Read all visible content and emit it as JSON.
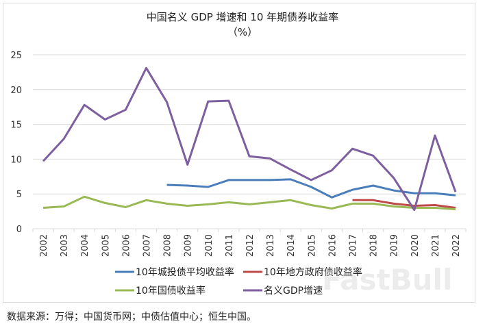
{
  "chart_data": {
    "type": "line",
    "title": "中国名义 GDP 增速和 10 年期债券收益率",
    "subtitle": "（%）",
    "ylim": [
      0,
      25
    ],
    "yticks": [
      0,
      5,
      10,
      15,
      20,
      25
    ],
    "grid": true,
    "legend_position": "bottom",
    "categories": [
      "2002",
      "2003",
      "2004",
      "2005",
      "2006",
      "2007",
      "2008",
      "2009",
      "2010",
      "2011",
      "2012",
      "2013",
      "2014",
      "2015",
      "2016",
      "2017",
      "2018",
      "2019",
      "2020",
      "2021",
      "2022"
    ],
    "series": [
      {
        "name": "10年城投债平均收益率",
        "color": "#4a7ebb",
        "values": [
          null,
          null,
          null,
          null,
          null,
          null,
          6.3,
          6.2,
          6.0,
          7.0,
          7.0,
          7.0,
          7.1,
          6.0,
          4.5,
          5.6,
          6.2,
          5.5,
          5.1,
          5.1,
          4.8
        ]
      },
      {
        "name": "10年地方政府债收益率",
        "color": "#be4b48",
        "values": [
          null,
          null,
          null,
          null,
          null,
          null,
          null,
          null,
          null,
          null,
          null,
          null,
          null,
          null,
          null,
          4.1,
          4.1,
          3.6,
          3.3,
          3.4,
          3.0
        ]
      },
      {
        "name": "10年国债收益率",
        "color": "#98b954",
        "values": [
          3.0,
          3.2,
          4.6,
          3.7,
          3.1,
          4.1,
          3.6,
          3.3,
          3.5,
          3.8,
          3.5,
          3.8,
          4.1,
          3.4,
          2.9,
          3.6,
          3.6,
          3.2,
          3.0,
          3.0,
          2.8
        ]
      },
      {
        "name": "名义GDP增速",
        "color": "#7d5fa0",
        "values": [
          9.7,
          12.9,
          17.8,
          15.7,
          17.1,
          23.1,
          18.2,
          9.2,
          18.3,
          18.4,
          10.4,
          10.1,
          8.5,
          7.0,
          8.4,
          11.5,
          10.5,
          7.3,
          2.7,
          13.4,
          5.3
        ]
      }
    ]
  },
  "footer": "数据来源：万得；中国货币网；中债估值中心；恒生中国。",
  "watermark": "FastBull"
}
